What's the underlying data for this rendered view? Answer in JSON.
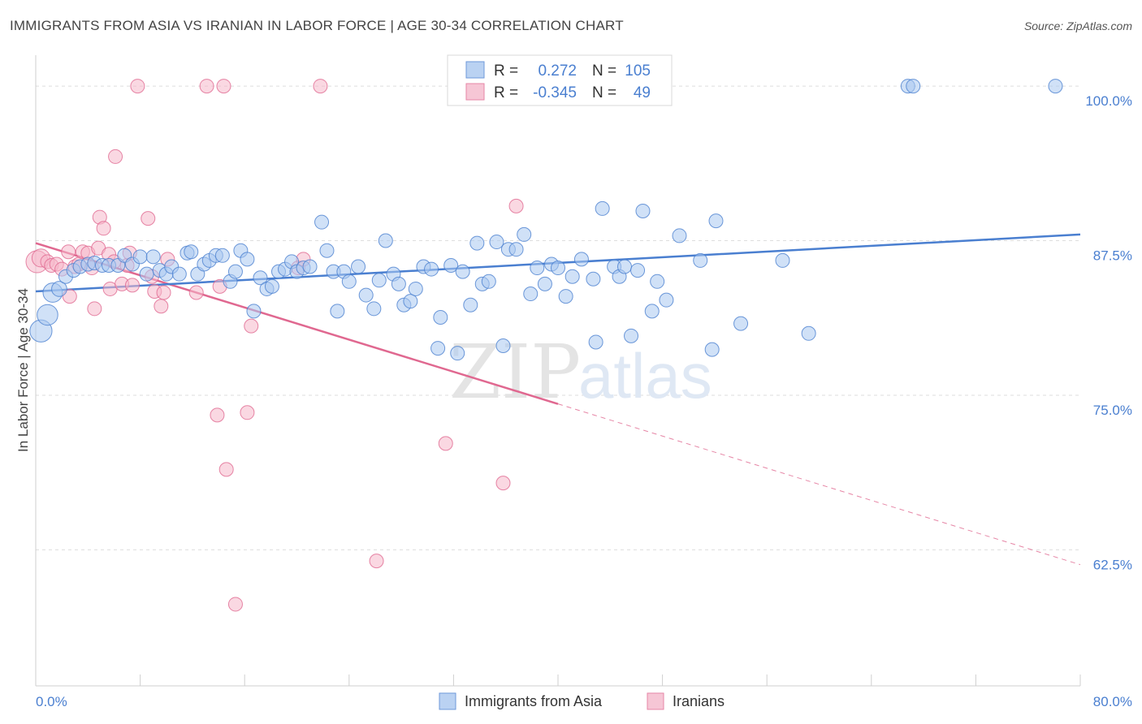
{
  "title": "IMMIGRANTS FROM ASIA VS IRANIAN IN LABOR FORCE | AGE 30-34 CORRELATION CHART",
  "source": "Source: ZipAtlas.com",
  "watermark": {
    "zip": "ZIP",
    "atlas": "atlas"
  },
  "colors": {
    "blue": "#4a7fd0",
    "blue_fill": "#aac8f0",
    "pink": "#e06890",
    "pink_fill": "#f5b8cb",
    "grid": "#dddddd"
  },
  "legend": {
    "rows": [
      {
        "r_label": "R =",
        "r_value": "0.272",
        "n_label": "N =",
        "n_value": "105"
      },
      {
        "r_label": "R =",
        "r_value": "-0.345",
        "n_label": "N =",
        "n_value": "49"
      }
    ]
  },
  "chart_data": {
    "type": "scatter",
    "title": "IMMIGRANTS FROM ASIA VS IRANIAN IN LABOR FORCE | AGE 30-34 CORRELATION CHART",
    "xlabel": "",
    "ylabel": "In Labor Force | Age 30-34",
    "xlim": [
      0,
      80
    ],
    "ylim": [
      51.5,
      102.5
    ],
    "x_tick_labels": [
      "0.0%",
      "80.0%"
    ],
    "y_ticks": [
      62.5,
      75.0,
      87.5,
      100.0
    ],
    "y_tick_labels": [
      "62.5%",
      "75.0%",
      "87.5%",
      "100.0%"
    ],
    "grid": true,
    "legend_position": "top-center",
    "series": [
      {
        "name": "Immigrants from Asia",
        "color": "#4a7fd0",
        "r": 0.272,
        "n": 105,
        "trend": {
          "x": [
            0,
            80
          ],
          "y": [
            83.4,
            88.0
          ],
          "style": "solid"
        },
        "points": [
          [
            0.4,
            80.2,
            1.6
          ],
          [
            0.9,
            81.5,
            1.5
          ],
          [
            1.3,
            83.3,
            1.4
          ],
          [
            1.8,
            83.6,
            1.1
          ],
          [
            2.3,
            84.6,
            1.0
          ],
          [
            2.9,
            85.1,
            1.0
          ],
          [
            3.4,
            85.4,
            1.0
          ],
          [
            4.0,
            85.6,
            1.0
          ],
          [
            4.5,
            85.7,
            1.0
          ],
          [
            5.1,
            85.5,
            1.0
          ],
          [
            5.6,
            85.5,
            1.0
          ],
          [
            6.3,
            85.5,
            1.0
          ],
          [
            6.8,
            86.3,
            1.0
          ],
          [
            7.4,
            85.6,
            1.0
          ],
          [
            8.0,
            86.2,
            1.0
          ],
          [
            8.5,
            84.8,
            1.0
          ],
          [
            9.0,
            86.2,
            1.0
          ],
          [
            9.5,
            85.1,
            1.0
          ],
          [
            10.0,
            84.8,
            1.0
          ],
          [
            10.4,
            85.4,
            1.0
          ],
          [
            11.0,
            84.8,
            1.0
          ],
          [
            11.6,
            86.5,
            1.0
          ],
          [
            11.9,
            86.6,
            1.0
          ],
          [
            12.4,
            84.8,
            1.0
          ],
          [
            12.9,
            85.6,
            1.0
          ],
          [
            13.3,
            85.9,
            1.0
          ],
          [
            13.8,
            86.3,
            1.0
          ],
          [
            14.3,
            86.3,
            1.0
          ],
          [
            14.9,
            84.2,
            1.0
          ],
          [
            15.3,
            85.0,
            1.0
          ],
          [
            15.7,
            86.7,
            1.0
          ],
          [
            16.2,
            86.0,
            1.0
          ],
          [
            16.7,
            81.8,
            1.0
          ],
          [
            17.2,
            84.5,
            1.0
          ],
          [
            17.7,
            83.6,
            1.0
          ],
          [
            18.1,
            83.8,
            1.0
          ],
          [
            18.6,
            85.0,
            1.0
          ],
          [
            19.1,
            85.2,
            1.0
          ],
          [
            19.6,
            85.8,
            1.0
          ],
          [
            20.0,
            85.0,
            1.0
          ],
          [
            20.5,
            85.3,
            1.0
          ],
          [
            21.0,
            85.4,
            1.0
          ],
          [
            21.9,
            89.0,
            1.0
          ],
          [
            22.3,
            86.7,
            1.0
          ],
          [
            22.8,
            85.0,
            1.0
          ],
          [
            23.1,
            81.8,
            1.0
          ],
          [
            23.6,
            85.0,
            1.0
          ],
          [
            24.0,
            84.2,
            1.0
          ],
          [
            24.7,
            85.4,
            1.0
          ],
          [
            25.3,
            83.1,
            1.0
          ],
          [
            25.9,
            82.0,
            1.0
          ],
          [
            26.3,
            84.3,
            1.0
          ],
          [
            26.8,
            87.5,
            1.0
          ],
          [
            27.4,
            84.8,
            1.0
          ],
          [
            27.8,
            84.0,
            1.0
          ],
          [
            28.2,
            82.3,
            1.0
          ],
          [
            28.7,
            82.6,
            1.0
          ],
          [
            29.1,
            83.6,
            1.0
          ],
          [
            29.7,
            85.4,
            1.0
          ],
          [
            30.3,
            85.2,
            1.0
          ],
          [
            31.0,
            81.3,
            1.0
          ],
          [
            30.8,
            78.8,
            1.0
          ],
          [
            31.8,
            85.5,
            1.0
          ],
          [
            32.3,
            78.4,
            1.0
          ],
          [
            32.7,
            85.0,
            1.0
          ],
          [
            33.3,
            82.3,
            1.0
          ],
          [
            33.8,
            87.3,
            1.0
          ],
          [
            34.2,
            84.0,
            1.0
          ],
          [
            34.7,
            84.2,
            1.0
          ],
          [
            35.3,
            87.4,
            1.0
          ],
          [
            35.8,
            79.0,
            1.0
          ],
          [
            36.2,
            86.8,
            1.0
          ],
          [
            36.8,
            86.8,
            1.0
          ],
          [
            37.4,
            88.0,
            1.0
          ],
          [
            37.9,
            83.2,
            1.0
          ],
          [
            38.4,
            85.3,
            1.0
          ],
          [
            39.0,
            84.0,
            1.0
          ],
          [
            39.5,
            85.6,
            1.0
          ],
          [
            40.0,
            85.3,
            1.0
          ],
          [
            40.6,
            83.0,
            1.0
          ],
          [
            41.1,
            84.6,
            1.0
          ],
          [
            41.8,
            86.0,
            1.0
          ],
          [
            42.7,
            84.4,
            1.0
          ],
          [
            42.9,
            79.3,
            1.0
          ],
          [
            43.4,
            90.1,
            1.0
          ],
          [
            44.3,
            85.4,
            1.0
          ],
          [
            44.7,
            84.6,
            1.0
          ],
          [
            45.1,
            85.4,
            1.0
          ],
          [
            45.6,
            79.8,
            1.0
          ],
          [
            46.1,
            85.1,
            1.0
          ],
          [
            46.5,
            89.9,
            1.0
          ],
          [
            47.2,
            81.8,
            1.0
          ],
          [
            47.6,
            84.2,
            1.0
          ],
          [
            48.3,
            82.7,
            1.0
          ],
          [
            49.3,
            87.9,
            1.0
          ],
          [
            50.9,
            85.9,
            1.0
          ],
          [
            51.8,
            78.7,
            1.0
          ],
          [
            52.1,
            89.1,
            1.0
          ],
          [
            54.0,
            80.8,
            1.0
          ],
          [
            57.2,
            85.9,
            1.0
          ],
          [
            59.2,
            80.0,
            1.0
          ],
          [
            66.8,
            100.0,
            1.0
          ],
          [
            67.2,
            100.0,
            1.0
          ],
          [
            78.1,
            100.0,
            1.0
          ]
        ]
      },
      {
        "name": "Iranians",
        "color": "#e06890",
        "r": -0.345,
        "n": 49,
        "trend": {
          "x": [
            0,
            40
          ],
          "y": [
            87.3,
            74.3
          ],
          "style": "solid"
        },
        "trend_extension": {
          "x": [
            40,
            80
          ],
          "y": [
            74.3,
            61.3
          ],
          "style": "dashed"
        },
        "points": [
          [
            0.1,
            85.8,
            1.6
          ],
          [
            0.4,
            86.1,
            1.3
          ],
          [
            0.9,
            85.8,
            1.0
          ],
          [
            1.2,
            85.5,
            1.0
          ],
          [
            1.6,
            85.6,
            1.0
          ],
          [
            2.0,
            85.2,
            1.0
          ],
          [
            2.5,
            86.6,
            1.0
          ],
          [
            2.6,
            83.0,
            1.0
          ],
          [
            3.0,
            85.4,
            1.0
          ],
          [
            3.3,
            85.6,
            1.0
          ],
          [
            3.6,
            86.6,
            1.0
          ],
          [
            4.0,
            86.5,
            1.0
          ],
          [
            4.3,
            85.3,
            1.0
          ],
          [
            4.5,
            82.0,
            1.0
          ],
          [
            4.8,
            86.9,
            1.0
          ],
          [
            4.9,
            89.4,
            1.0
          ],
          [
            5.2,
            88.5,
            1.0
          ],
          [
            5.6,
            86.4,
            1.0
          ],
          [
            5.7,
            83.6,
            1.0
          ],
          [
            6.0,
            85.8,
            1.0
          ],
          [
            6.1,
            94.3,
            1.0
          ],
          [
            6.6,
            84.0,
            1.0
          ],
          [
            7.0,
            85.5,
            1.0
          ],
          [
            7.2,
            86.5,
            1.0
          ],
          [
            7.4,
            83.9,
            1.0
          ],
          [
            7.8,
            100.0,
            1.0
          ],
          [
            8.6,
            89.3,
            1.0
          ],
          [
            8.9,
            84.6,
            1.0
          ],
          [
            9.1,
            83.4,
            1.0
          ],
          [
            9.6,
            82.2,
            1.0
          ],
          [
            9.8,
            83.3,
            1.0
          ],
          [
            10.1,
            86.0,
            1.0
          ],
          [
            12.3,
            83.3,
            1.0
          ],
          [
            13.1,
            100.0,
            1.0
          ],
          [
            13.9,
            73.4,
            1.0
          ],
          [
            14.1,
            83.8,
            1.0
          ],
          [
            14.4,
            100.0,
            1.0
          ],
          [
            14.6,
            69.0,
            1.0
          ],
          [
            15.3,
            58.1,
            1.0
          ],
          [
            16.2,
            73.6,
            1.0
          ],
          [
            16.5,
            80.6,
            1.0
          ],
          [
            20.1,
            85.3,
            1.0
          ],
          [
            20.5,
            86.0,
            1.0
          ],
          [
            21.8,
            100.0,
            1.0
          ],
          [
            26.1,
            61.6,
            1.0
          ],
          [
            31.4,
            71.1,
            1.0
          ],
          [
            35.8,
            67.9,
            1.0
          ],
          [
            36.8,
            90.3,
            1.0
          ]
        ]
      }
    ]
  }
}
